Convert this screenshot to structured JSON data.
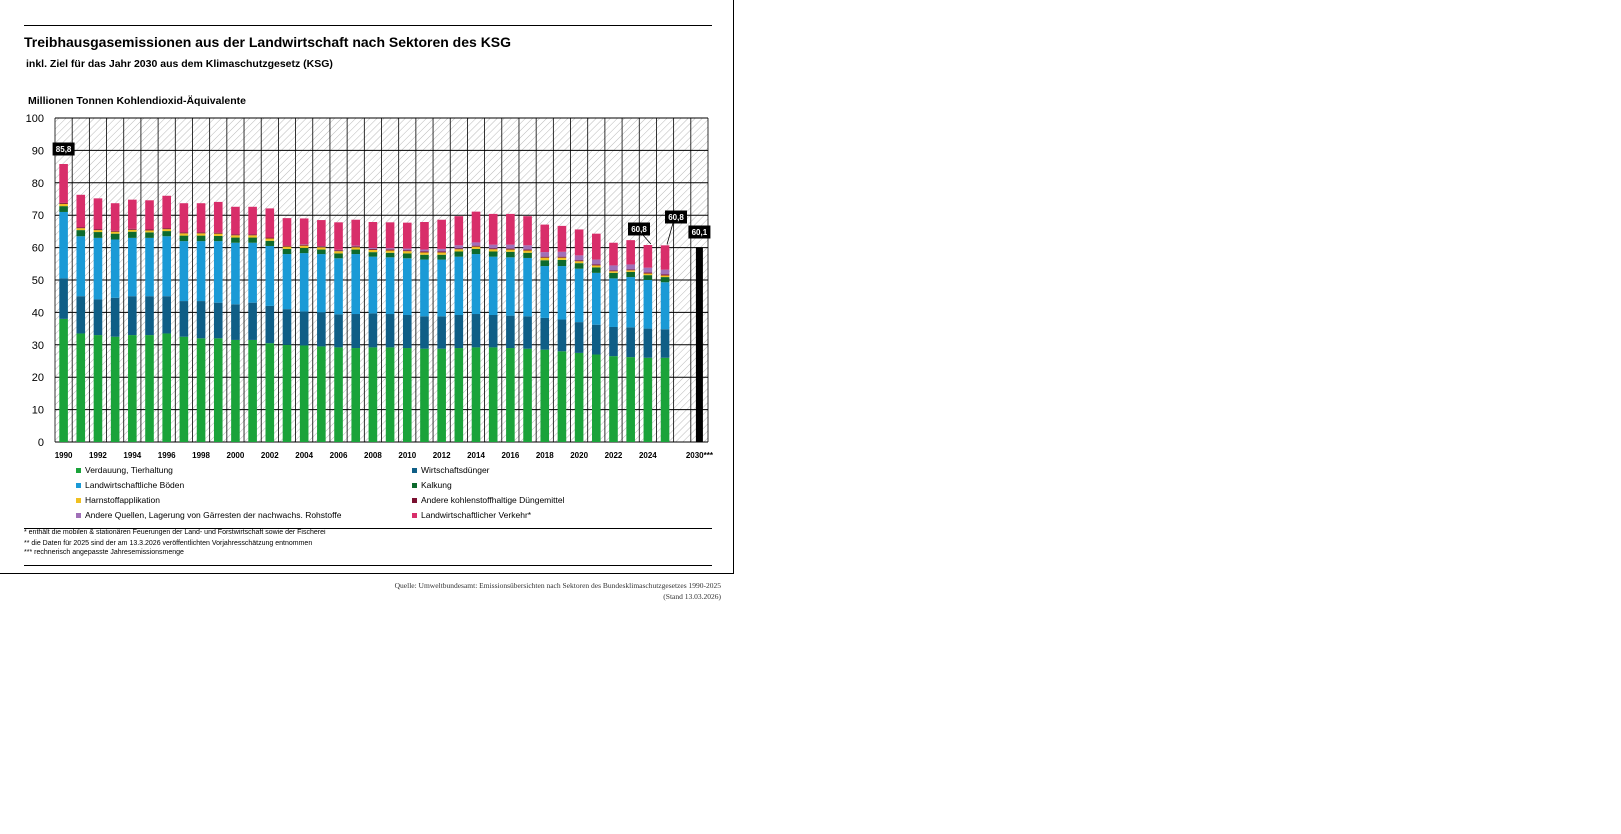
{
  "header": {
    "title": "Treibhausgasemissionen aus der Landwirtschaft nach Sektoren des KSG",
    "subtitle": "inkl. Ziel für das Jahr 2030 aus dem Klimaschutzgesetz (KSG)",
    "unit": "Millionen Tonnen Kohlendioxid-Äquivalente"
  },
  "legend": [
    {
      "label": "Verdauung, Tierhaltung",
      "color": "#1aa33a"
    },
    {
      "label": "Wirtschaftsdünger",
      "color": "#0f5e86"
    },
    {
      "label": "Landwirtschaftliche Böden",
      "color": "#1a9ad6"
    },
    {
      "label": "Kalkung",
      "color": "#0d6a2d"
    },
    {
      "label": "Harnstoffapplikation",
      "color": "#f0c020"
    },
    {
      "label": "Andere kohlenstoffhaltige Düngemittel",
      "color": "#7a1030"
    },
    {
      "label": "Andere Quellen, Lagerung von Gärresten der nachwachs. Rohstoffe",
      "color": "#a070b8"
    },
    {
      "label": "Landwirtschaftlicher Verkehr*",
      "color": "#d82e6a"
    }
  ],
  "notes": [
    "* enthält die mobilen & stationären Feuerungen der Land- und Forstwirtschaft sowie der Fischerei",
    "** die Daten für 2025 sind der am 13.3.2026 veröffentlichten Vorjahresschätzung entnommen",
    "***  rechnerisch angepasste Jahresemissionsmenge"
  ],
  "source": {
    "line1": "Quelle: Umweltbundesamt: Emissionsübersichten  nach Sektoren des Bundesklimaschutzgesetzes 1990-2025",
    "line2": "(Stand 13.03.2026)"
  },
  "callouts": {
    "first": "85,8",
    "y2024": "60,8",
    "y2025": "60,8",
    "target": "60,1"
  },
  "chart_data": {
    "type": "bar",
    "stacked": true,
    "ylim": [
      0,
      100
    ],
    "yticks": [
      0,
      10,
      20,
      30,
      40,
      50,
      60,
      70,
      80,
      90,
      100
    ],
    "ylabel": "Millionen Tonnen Kohlendioxid-Äquivalente",
    "grid": true,
    "categories": [
      "1990",
      "1991",
      "1992",
      "1993",
      "1994",
      "1995",
      "1996",
      "1997",
      "1998",
      "1999",
      "2000",
      "2001",
      "2002",
      "2003",
      "2004",
      "2005",
      "2006",
      "2007",
      "2008",
      "2009",
      "2010",
      "2011",
      "2012",
      "2013",
      "2014",
      "2015",
      "2016",
      "2017",
      "2018",
      "2019",
      "2020",
      "2021",
      "2022",
      "2023",
      "2024",
      "2025",
      "",
      "2030***"
    ],
    "tick_labels": [
      "1990",
      "",
      "1992",
      "",
      "1994",
      "",
      "1996",
      "",
      "1998",
      "",
      "2000",
      "",
      "2002",
      "",
      "2004",
      "",
      "2006",
      "",
      "2008",
      "",
      "2010",
      "",
      "2012",
      "",
      "2014",
      "",
      "2016",
      "",
      "2018",
      "",
      "2020",
      "",
      "2022",
      "",
      "2024",
      "",
      "",
      "2030***"
    ],
    "series": [
      {
        "name": "Verdauung, Tierhaltung",
        "color": "#1aa33a",
        "values": [
          38.0,
          33.5,
          33.0,
          32.5,
          33.0,
          33.0,
          33.5,
          32.5,
          32.0,
          32.0,
          31.5,
          31.5,
          30.5,
          30.0,
          29.8,
          29.5,
          29.2,
          29.0,
          29.2,
          29.2,
          29.0,
          28.8,
          28.8,
          29.0,
          29.2,
          29.2,
          29.0,
          28.8,
          28.5,
          28.0,
          27.5,
          27.0,
          26.5,
          26.2,
          26.0,
          26.0,
          null,
          null
        ]
      },
      {
        "name": "Wirtschaftsdünger",
        "color": "#0f5e86",
        "values": [
          12.5,
          11.5,
          11.0,
          12.0,
          12.0,
          12.0,
          11.5,
          11.0,
          11.5,
          11.0,
          11.0,
          11.5,
          11.5,
          11.0,
          10.5,
          10.5,
          10.2,
          10.5,
          10.5,
          10.3,
          10.2,
          10.0,
          10.0,
          10.2,
          10.3,
          10.0,
          10.0,
          10.0,
          9.8,
          9.8,
          9.5,
          9.2,
          9.0,
          9.2,
          9.0,
          8.8,
          null,
          null
        ]
      },
      {
        "name": "Landwirtschaftliche Böden",
        "color": "#1a9ad6",
        "values": [
          20.5,
          18.5,
          19.0,
          18.0,
          18.0,
          18.0,
          18.5,
          18.5,
          18.5,
          19.0,
          19.0,
          18.5,
          18.5,
          17.0,
          18.0,
          18.0,
          17.3,
          18.5,
          17.5,
          17.5,
          17.5,
          17.5,
          17.5,
          18.0,
          18.5,
          18.0,
          18.0,
          18.0,
          16.0,
          16.5,
          16.5,
          16.0,
          15.0,
          15.5,
          15.0,
          14.5,
          null,
          null
        ]
      },
      {
        "name": "Kalkung",
        "color": "#0d6a2d",
        "values": [
          1.8,
          1.9,
          1.8,
          1.8,
          1.9,
          1.7,
          1.6,
          1.7,
          1.7,
          1.6,
          1.6,
          1.6,
          1.6,
          1.6,
          1.6,
          1.4,
          1.5,
          1.4,
          1.4,
          1.4,
          1.5,
          1.5,
          1.5,
          1.6,
          1.6,
          1.6,
          1.7,
          1.6,
          1.8,
          1.9,
          1.7,
          1.7,
          1.7,
          1.6,
          1.5,
          1.6,
          null,
          null
        ]
      },
      {
        "name": "Harnstoffapplikation",
        "color": "#f0c020",
        "values": [
          0.7,
          0.6,
          0.6,
          0.6,
          0.6,
          0.6,
          0.6,
          0.7,
          0.7,
          0.7,
          0.7,
          0.7,
          0.7,
          0.7,
          0.7,
          0.7,
          0.7,
          0.7,
          0.7,
          0.7,
          0.7,
          0.7,
          0.7,
          0.7,
          0.7,
          0.7,
          0.7,
          0.7,
          0.8,
          0.7,
          0.6,
          0.6,
          0.5,
          0.5,
          0.5,
          0.5,
          null,
          null
        ]
      },
      {
        "name": "Andere kohlenstoffhaltige Düngemittel",
        "color": "#7a1030",
        "values": [
          0.3,
          0.3,
          0.3,
          0.3,
          0.3,
          0.3,
          0.3,
          0.3,
          0.3,
          0.3,
          0.3,
          0.3,
          0.3,
          0.3,
          0.3,
          0.3,
          0.3,
          0.3,
          0.3,
          0.3,
          0.3,
          0.3,
          0.3,
          0.3,
          0.3,
          0.3,
          0.3,
          0.3,
          0.3,
          0.3,
          0.3,
          0.3,
          0.3,
          0.3,
          0.3,
          0.3,
          null,
          null
        ]
      },
      {
        "name": "Andere Quellen, Lagerung von Gärresten der nachwachs. Rohstoffe",
        "color": "#a070b8",
        "values": [
          0.0,
          0.0,
          0.0,
          0.0,
          0.0,
          0.0,
          0.0,
          0.0,
          0.0,
          0.0,
          0.0,
          0.0,
          0.0,
          0.0,
          0.1,
          0.1,
          0.1,
          0.2,
          0.3,
          0.4,
          0.5,
          0.6,
          0.8,
          0.9,
          1.0,
          1.1,
          1.2,
          1.3,
          1.4,
          1.5,
          1.5,
          1.5,
          1.5,
          1.5,
          1.5,
          1.5,
          null,
          null
        ]
      },
      {
        "name": "Landwirtschaftlicher Verkehr*",
        "color": "#d82e6a",
        "values": [
          12.0,
          10.0,
          9.5,
          8.5,
          9.0,
          9.0,
          10.0,
          9.0,
          9.0,
          9.5,
          8.5,
          8.5,
          9.0,
          8.5,
          8.0,
          8.0,
          8.5,
          8.0,
          8.0,
          8.0,
          8.0,
          8.5,
          9.0,
          9.0,
          9.5,
          9.5,
          9.5,
          9.0,
          8.5,
          8.0,
          8.0,
          8.0,
          7.0,
          7.5,
          7.0,
          7.5,
          null,
          null
        ]
      }
    ],
    "target": {
      "category": "2030***",
      "value": 60.1,
      "color": "#000000"
    }
  }
}
